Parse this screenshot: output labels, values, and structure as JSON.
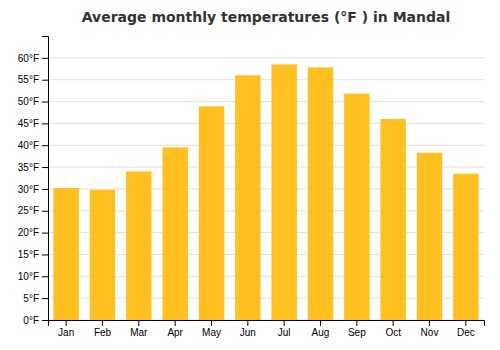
{
  "chart_data": {
    "type": "bar",
    "title": "Average monthly temperatures (°F ) in Mandal",
    "categories": [
      "Jan",
      "Feb",
      "Mar",
      "Apr",
      "May",
      "Jun",
      "Jul",
      "Aug",
      "Sep",
      "Oct",
      "Nov",
      "Dec"
    ],
    "values": [
      30.2,
      29.8,
      34.0,
      39.5,
      48.9,
      56.0,
      58.5,
      57.8,
      51.8,
      46.0,
      38.3,
      33.5
    ],
    "color": "#FFC020",
    "ylim": [
      0,
      65
    ],
    "yticks": [
      {
        "value": 0,
        "label": "0°F"
      },
      {
        "value": 5,
        "label": "5°F"
      },
      {
        "value": 10,
        "label": "10°F"
      },
      {
        "value": 15,
        "label": "15°F"
      },
      {
        "value": 20,
        "label": "20°F"
      },
      {
        "value": 25,
        "label": "25°F"
      },
      {
        "value": 30,
        "label": "30°F"
      },
      {
        "value": 35,
        "label": "35°F"
      },
      {
        "value": 40,
        "label": "40°F"
      },
      {
        "value": 45,
        "label": "45°F"
      },
      {
        "value": 50,
        "label": "50°F"
      },
      {
        "value": 55,
        "label": "55°F"
      },
      {
        "value": 60,
        "label": "60°F"
      }
    ],
    "grid": true
  }
}
